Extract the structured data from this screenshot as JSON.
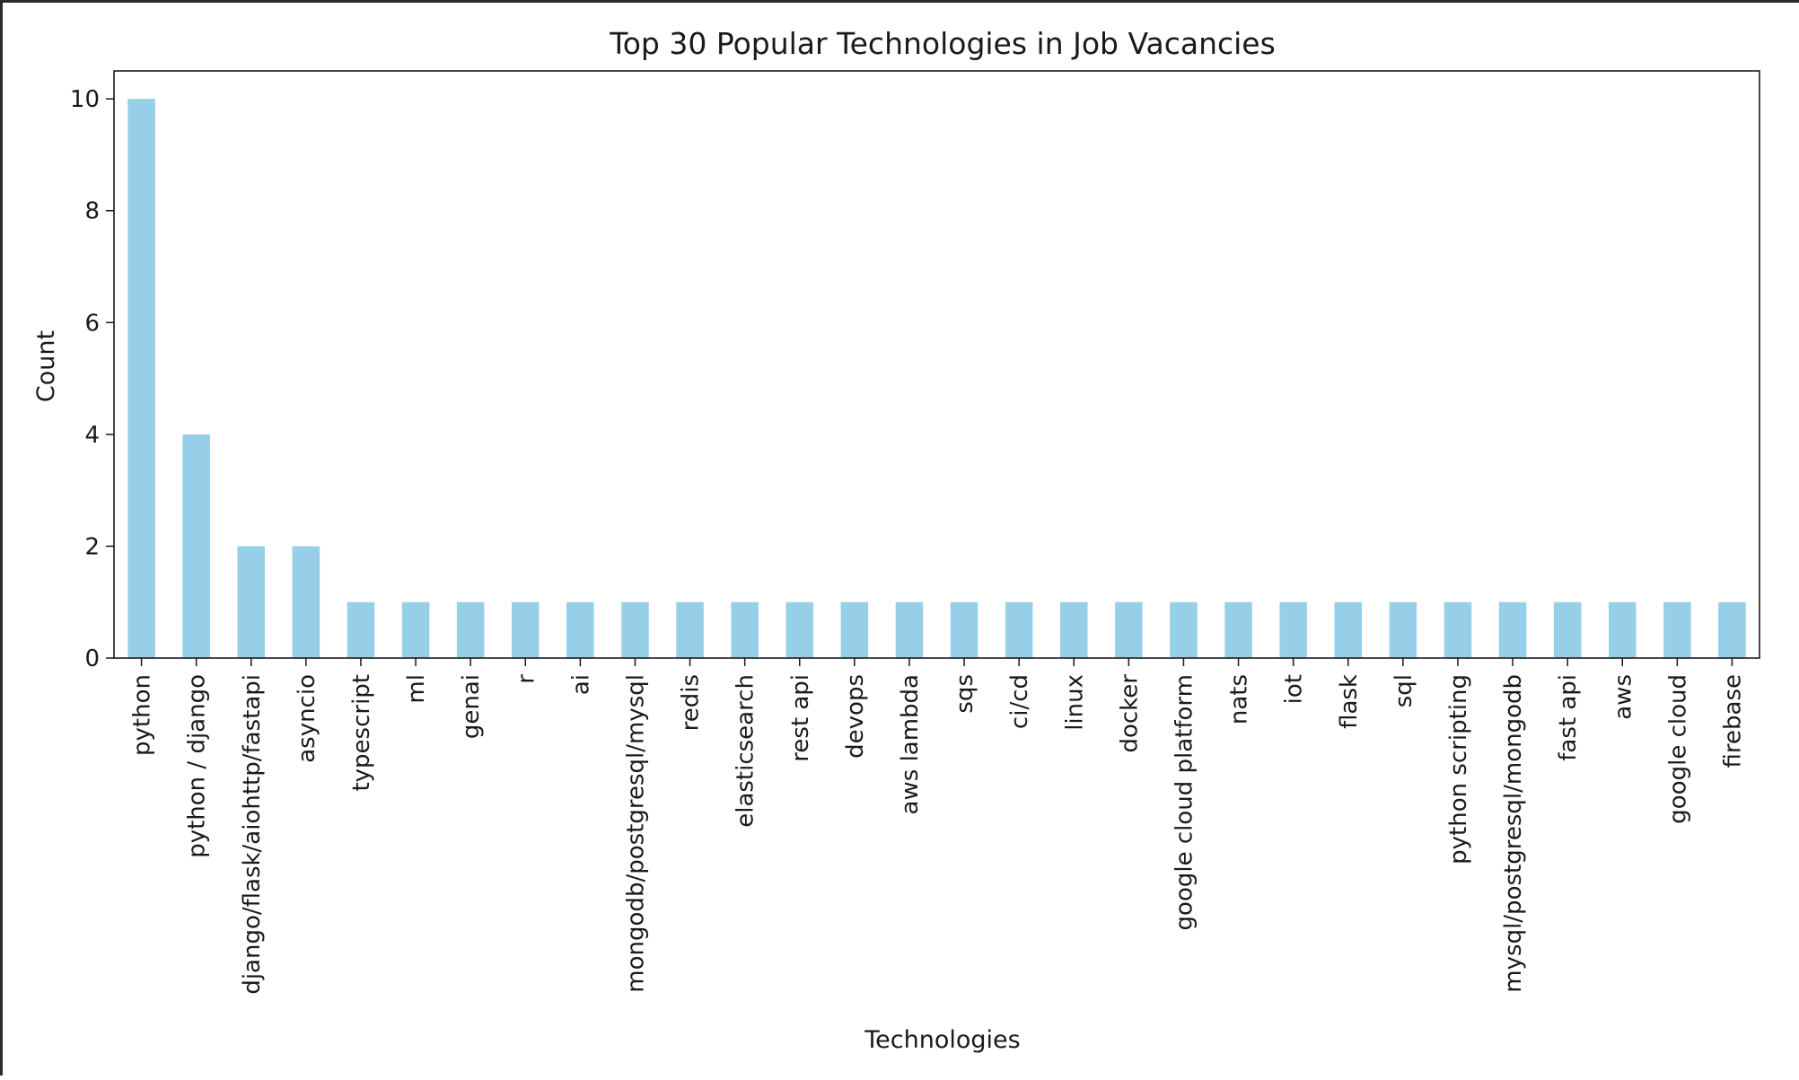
{
  "chart_data": {
    "type": "bar",
    "title": "Top 30 Popular Technologies in Job Vacancies",
    "xlabel": "Technologies",
    "ylabel": "Count",
    "ylim": [
      0,
      10.5
    ],
    "yticks": [
      0,
      2,
      4,
      6,
      8,
      10
    ],
    "grid": false,
    "bar_color": "#97cfe9",
    "categories": [
      "python",
      "python / django",
      "django/flask/aiohttp/fastapi",
      "asyncio",
      "typescript",
      "ml",
      "genai",
      "r",
      "ai",
      "mongodb/postgresql/mysql",
      "redis",
      "elasticsearch",
      "rest api",
      "devops",
      "aws lambda",
      "sqs",
      "ci/cd",
      "linux",
      "docker",
      "google cloud platform",
      "nats",
      "iot",
      "flask",
      "sql",
      "python scripting",
      "mysql/postgresql/mongodb",
      "fast api",
      "aws",
      "google cloud",
      "firebase"
    ],
    "values": [
      10,
      4,
      2,
      2,
      1,
      1,
      1,
      1,
      1,
      1,
      1,
      1,
      1,
      1,
      1,
      1,
      1,
      1,
      1,
      1,
      1,
      1,
      1,
      1,
      1,
      1,
      1,
      1,
      1,
      1
    ]
  }
}
